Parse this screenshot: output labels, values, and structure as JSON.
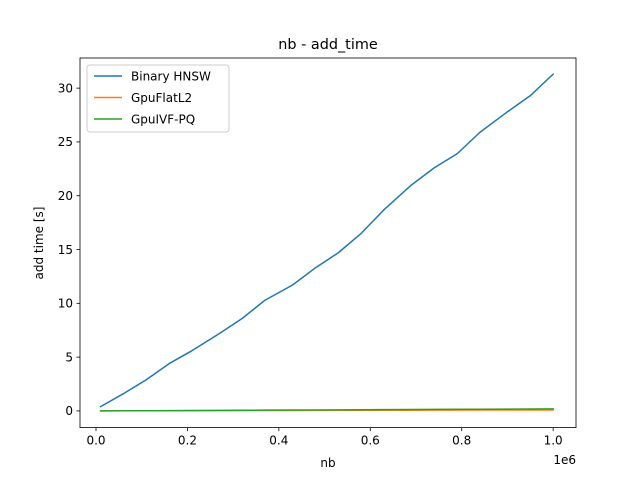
{
  "chart_data": {
    "type": "line",
    "title": "nb - add_time",
    "xlabel": "nb",
    "ylabel": "add time [s]",
    "x_offset_label": "1e6",
    "xlim": [
      -0.035,
      1.05
    ],
    "ylim": [
      -1.55,
      32.8
    ],
    "xticks": [
      0.0,
      0.2,
      0.4,
      0.6,
      0.8,
      1.0
    ],
    "xtick_labels": [
      "0.0",
      "0.2",
      "0.4",
      "0.6",
      "0.8",
      "1.0"
    ],
    "yticks": [
      0,
      5,
      10,
      15,
      20,
      25,
      30
    ],
    "ytick_labels": [
      "0",
      "5",
      "10",
      "15",
      "20",
      "25",
      "30"
    ],
    "grid": false,
    "legend_position": "top-left",
    "x": [
      0.01,
      0.06,
      0.11,
      0.16,
      0.21,
      0.27,
      0.32,
      0.37,
      0.43,
      0.48,
      0.53,
      0.58,
      0.63,
      0.69,
      0.74,
      0.79,
      0.84,
      0.9,
      0.95,
      1.0
    ],
    "series": [
      {
        "name": "Binary HNSW",
        "color": "#1f77b4",
        "values": [
          0.4,
          1.6,
          2.9,
          4.4,
          5.6,
          7.2,
          8.6,
          10.3,
          11.7,
          13.3,
          14.7,
          16.5,
          18.7,
          21.0,
          22.6,
          23.9,
          25.9,
          27.8,
          29.3,
          31.3
        ]
      },
      {
        "name": "GpuFlatL2",
        "color": "#ff7f0e",
        "values": [
          0.0,
          0.01,
          0.01,
          0.02,
          0.02,
          0.03,
          0.03,
          0.04,
          0.04,
          0.05,
          0.05,
          0.05,
          0.06,
          0.06,
          0.07,
          0.07,
          0.08,
          0.08,
          0.09,
          0.09
        ]
      },
      {
        "name": "GpuIVF-PQ",
        "color": "#2ca02c",
        "values": [
          0.0,
          0.01,
          0.02,
          0.03,
          0.04,
          0.05,
          0.06,
          0.07,
          0.08,
          0.09,
          0.1,
          0.11,
          0.12,
          0.13,
          0.14,
          0.15,
          0.16,
          0.17,
          0.18,
          0.19
        ]
      }
    ]
  }
}
